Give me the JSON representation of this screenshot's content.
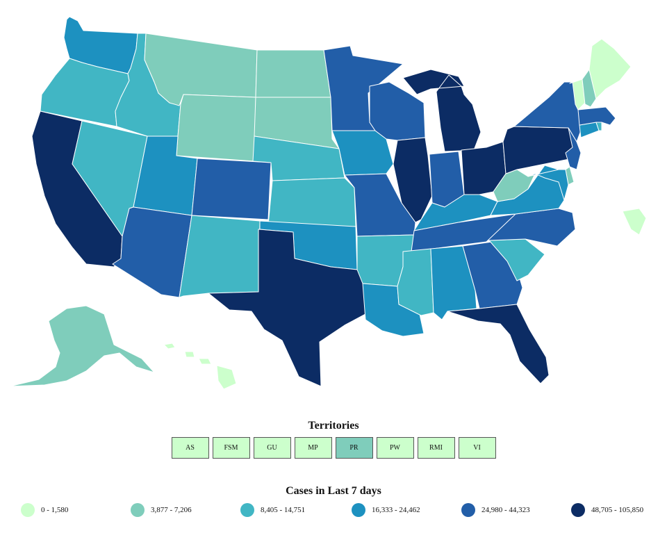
{
  "colors": {
    "c0": "#ccffcc",
    "c1": "#7fcdbb",
    "c2": "#41b6c4",
    "c3": "#1d91c0",
    "c4": "#225ea8",
    "c5": "#0c2c64"
  },
  "states": [
    {
      "code": "WA",
      "bin": "c3"
    },
    {
      "code": "OR",
      "bin": "c2"
    },
    {
      "code": "CA",
      "bin": "c5"
    },
    {
      "code": "NV",
      "bin": "c2"
    },
    {
      "code": "ID",
      "bin": "c2"
    },
    {
      "code": "MT",
      "bin": "c1"
    },
    {
      "code": "WY",
      "bin": "c1"
    },
    {
      "code": "UT",
      "bin": "c3"
    },
    {
      "code": "AZ",
      "bin": "c4"
    },
    {
      "code": "CO",
      "bin": "c4"
    },
    {
      "code": "NM",
      "bin": "c2"
    },
    {
      "code": "ND",
      "bin": "c1"
    },
    {
      "code": "SD",
      "bin": "c1"
    },
    {
      "code": "NE",
      "bin": "c2"
    },
    {
      "code": "KS",
      "bin": "c2"
    },
    {
      "code": "OK",
      "bin": "c3"
    },
    {
      "code": "TX",
      "bin": "c5"
    },
    {
      "code": "MN",
      "bin": "c4"
    },
    {
      "code": "IA",
      "bin": "c3"
    },
    {
      "code": "MO",
      "bin": "c4"
    },
    {
      "code": "AR",
      "bin": "c2"
    },
    {
      "code": "LA",
      "bin": "c3"
    },
    {
      "code": "WI",
      "bin": "c4"
    },
    {
      "code": "IL",
      "bin": "c5"
    },
    {
      "code": "MI",
      "bin": "c5"
    },
    {
      "code": "IN",
      "bin": "c4"
    },
    {
      "code": "OH",
      "bin": "c5"
    },
    {
      "code": "KY",
      "bin": "c3"
    },
    {
      "code": "TN",
      "bin": "c4"
    },
    {
      "code": "MS",
      "bin": "c2"
    },
    {
      "code": "AL",
      "bin": "c3"
    },
    {
      "code": "GA",
      "bin": "c4"
    },
    {
      "code": "FL",
      "bin": "c5"
    },
    {
      "code": "SC",
      "bin": "c2"
    },
    {
      "code": "NC",
      "bin": "c4"
    },
    {
      "code": "VA",
      "bin": "c3"
    },
    {
      "code": "WV",
      "bin": "c1"
    },
    {
      "code": "PA",
      "bin": "c5"
    },
    {
      "code": "NY",
      "bin": "c4"
    },
    {
      "code": "NJ",
      "bin": "c4"
    },
    {
      "code": "DE",
      "bin": "c1"
    },
    {
      "code": "MD",
      "bin": "c3"
    },
    {
      "code": "CT",
      "bin": "c3"
    },
    {
      "code": "RI",
      "bin": "c2"
    },
    {
      "code": "MA",
      "bin": "c4"
    },
    {
      "code": "VT",
      "bin": "c0"
    },
    {
      "code": "NH",
      "bin": "c1"
    },
    {
      "code": "ME",
      "bin": "c0"
    },
    {
      "code": "AK",
      "bin": "c1"
    },
    {
      "code": "HI",
      "bin": "c0"
    },
    {
      "code": "DC",
      "bin": "c0"
    }
  ],
  "territories": {
    "title": "Territories",
    "items": [
      {
        "label": "AS",
        "bin": "c0"
      },
      {
        "label": "FSM",
        "bin": "c0"
      },
      {
        "label": "GU",
        "bin": "c0"
      },
      {
        "label": "MP",
        "bin": "c0"
      },
      {
        "label": "PR",
        "bin": "c1"
      },
      {
        "label": "PW",
        "bin": "c0"
      },
      {
        "label": "RMI",
        "bin": "c0"
      },
      {
        "label": "VI",
        "bin": "c0"
      }
    ]
  },
  "legend": {
    "title": "Cases in Last 7 days",
    "items": [
      {
        "label": "0 - 1,580",
        "bin": "c0"
      },
      {
        "label": "3,877 - 7,206",
        "bin": "c1"
      },
      {
        "label": "8,405 - 14,751",
        "bin": "c2"
      },
      {
        "label": "16,333 - 24,462",
        "bin": "c3"
      },
      {
        "label": "24,980 - 44,323",
        "bin": "c4"
      },
      {
        "label": "48,705 - 105,850",
        "bin": "c5"
      }
    ]
  }
}
